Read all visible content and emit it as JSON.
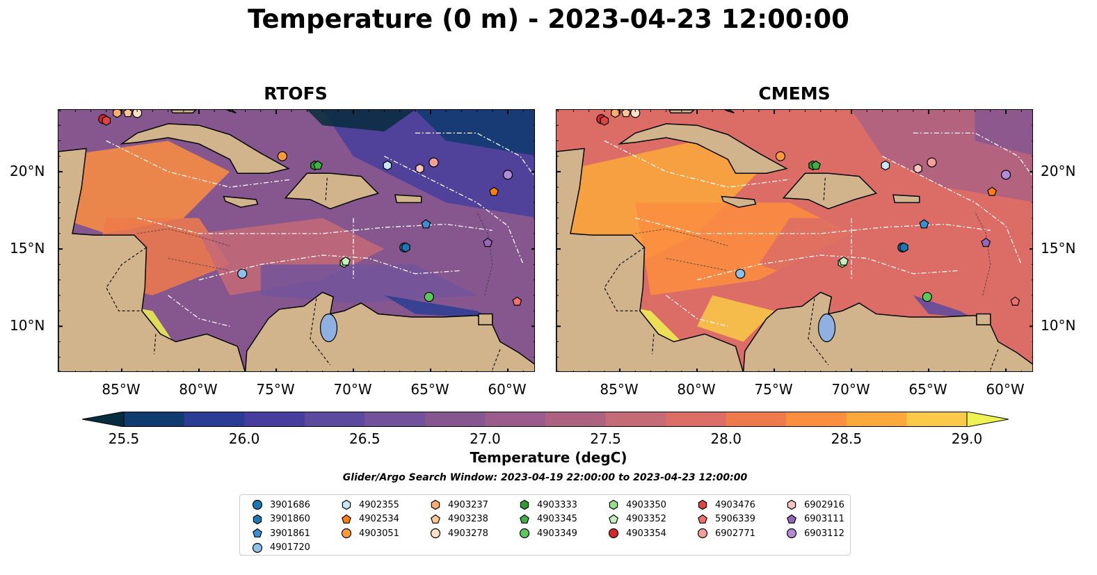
{
  "title": "Temperature (0 m) - 2023-04-23 12:00:00",
  "panels": [
    {
      "title": "RTOFS",
      "style": "cool"
    },
    {
      "title": "CMEMS",
      "style": "warm"
    }
  ],
  "lon_ticks": [
    "85°W",
    "80°W",
    "75°W",
    "70°W",
    "65°W",
    "60°W"
  ],
  "lat_ticks": [
    "20°N",
    "15°N",
    "10°N"
  ],
  "colorbar": {
    "label": "Temperature (degC)",
    "ticks": [
      "25.5",
      "26.0",
      "26.5",
      "27.0",
      "27.5",
      "28.0",
      "28.5",
      "29.0"
    ],
    "colors": [
      "#062d3d",
      "#0f3b6e",
      "#2a3d93",
      "#463d9d",
      "#5c4a9e",
      "#72539b",
      "#86568f",
      "#995c8d",
      "#ad6282",
      "#c56a76",
      "#dc6d66",
      "#ee7a4b",
      "#fc8e3f",
      "#fca93c",
      "#f9c947",
      "#eef252"
    ],
    "land": "#d2b48c",
    "lake": "#8fb0e0"
  },
  "search_window": "Glider/Argo Search Window: 2023-04-19 22:00:00 to 2023-04-23 12:00:00",
  "platforms": [
    {
      "id": "3901686",
      "color": "#1f77b4",
      "marker": "circle",
      "lon": -66.7,
      "lat": 15.1
    },
    {
      "id": "3901860",
      "color": "#1f77b4",
      "marker": "hexagon",
      "lon": -66.6,
      "lat": 15.1
    },
    {
      "id": "3901861",
      "color": "#3a8fd0",
      "marker": "pentagon",
      "lon": -65.3,
      "lat": 16.6
    },
    {
      "id": "4901720",
      "color": "#8ec1ea",
      "marker": "circle",
      "lon": -77.2,
      "lat": 13.4
    },
    {
      "id": "4902355",
      "color": "#c8e8f8",
      "marker": "hexagon",
      "lon": -67.8,
      "lat": 20.4
    },
    {
      "id": "4902534",
      "color": "#ff7f0e",
      "marker": "pentagon",
      "lon": -60.9,
      "lat": 18.7
    },
    {
      "id": "4903051",
      "color": "#fd9a3a",
      "marker": "circle",
      "lon": -74.6,
      "lat": 21.0
    },
    {
      "id": "4903237",
      "color": "#fdae6b",
      "marker": "hexagon",
      "lon": -85.3,
      "lat": 23.8
    },
    {
      "id": "4903238",
      "color": "#fdc898",
      "marker": "pentagon",
      "lon": -84.6,
      "lat": 23.8
    },
    {
      "id": "4903278",
      "color": "#fee0c4",
      "marker": "circle",
      "lon": -84.0,
      "lat": 23.8
    },
    {
      "id": "4903333",
      "color": "#2ca02c",
      "marker": "hexagon",
      "lon": -72.5,
      "lat": 20.4
    },
    {
      "id": "4903345",
      "color": "#43b043",
      "marker": "pentagon",
      "lon": -72.3,
      "lat": 20.4
    },
    {
      "id": "4903349",
      "color": "#5cc85c",
      "marker": "circle",
      "lon": -65.1,
      "lat": 11.9
    },
    {
      "id": "4903350",
      "color": "#98df8a",
      "marker": "hexagon",
      "lon": -70.6,
      "lat": 14.1
    },
    {
      "id": "4903352",
      "color": "#c7edc0",
      "marker": "pentagon",
      "lon": -70.5,
      "lat": 14.2
    },
    {
      "id": "4903354",
      "color": "#d62728",
      "marker": "circle",
      "lon": -86.2,
      "lat": 23.4
    },
    {
      "id": "4903476",
      "color": "#e04545",
      "marker": "hexagon",
      "lon": -86.0,
      "lat": 23.3
    },
    {
      "id": "5906339",
      "color": "#f07070",
      "marker": "pentagon",
      "lon": -59.4,
      "lat": 11.6
    },
    {
      "id": "6902771",
      "color": "#f4a09a",
      "marker": "circle",
      "lon": -64.8,
      "lat": 20.6
    },
    {
      "id": "6902916",
      "color": "#f7c4c0",
      "marker": "hexagon",
      "lon": -65.7,
      "lat": 20.2
    },
    {
      "id": "6903111",
      "color": "#9467bd",
      "marker": "pentagon",
      "lon": -61.3,
      "lat": 15.4
    },
    {
      "id": "6903112",
      "color": "#b28ad6",
      "marker": "circle",
      "lon": -60.0,
      "lat": 19.8
    }
  ]
}
